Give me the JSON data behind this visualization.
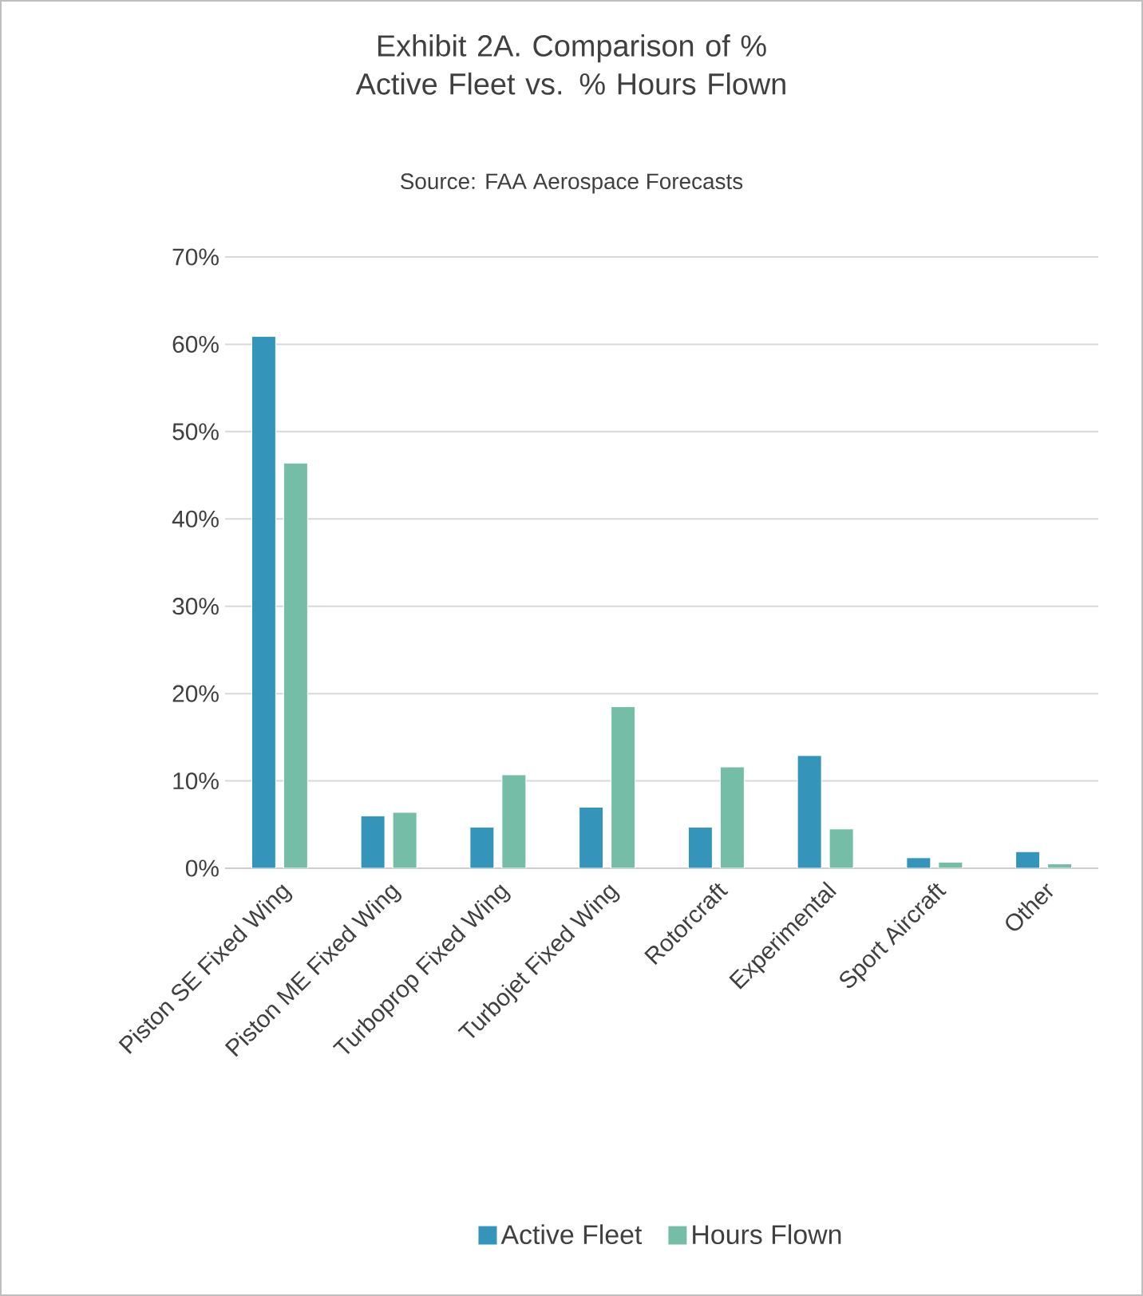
{
  "chart_data": {
    "type": "bar",
    "title": "Exhibit 2A. Comparison of % Active Fleet  vs. % Hours Flown",
    "subtitle": "Source: FAA Aerospace Forecasts",
    "categories": [
      "Piston SE Fixed Wing",
      "Piston ME Fixed Wing",
      "Turboprop Fixed Wing",
      "Turbojet Fixed Wing",
      "Rotorcraft",
      "Experimental",
      "Sport Aircraft",
      "Other"
    ],
    "series": [
      {
        "name": "Active Fleet",
        "color": "#3494ba",
        "values": [
          60.9,
          6.0,
          4.7,
          7.0,
          4.7,
          12.9,
          1.2,
          1.9
        ]
      },
      {
        "name": "Hours Flown",
        "color": "#75bda7",
        "values": [
          46.4,
          6.4,
          10.7,
          18.5,
          11.6,
          4.5,
          0.7,
          0.5
        ]
      }
    ],
    "ylim": [
      0,
      70
    ],
    "yticks": [
      {
        "value": 0,
        "label": "0%"
      },
      {
        "value": 10,
        "label": "10%"
      },
      {
        "value": 20,
        "label": "20%"
      },
      {
        "value": 30,
        "label": "30%"
      },
      {
        "value": 40,
        "label": "40%"
      },
      {
        "value": 50,
        "label": "50%"
      },
      {
        "value": 60,
        "label": "60%"
      },
      {
        "value": 70,
        "label": "70%"
      }
    ],
    "grid": "y",
    "legend": "bottom"
  }
}
